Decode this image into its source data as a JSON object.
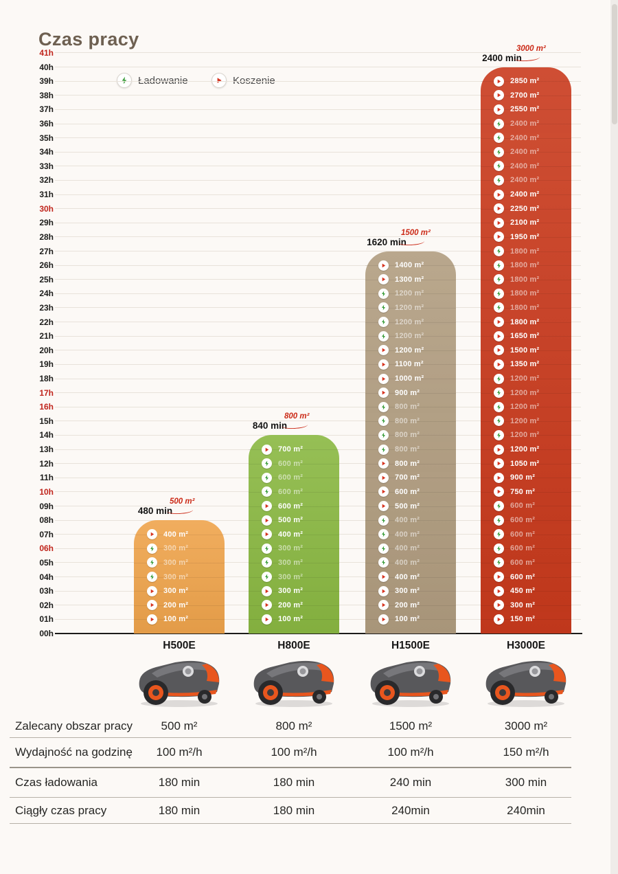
{
  "page": {
    "title": "Czas pracy"
  },
  "legend": {
    "charging_label": "Ładowanie",
    "mowing_label": "Koszenie"
  },
  "colors": {
    "title": "#6e6051",
    "tick": "#1c1c1a",
    "tick_red": "#c0251c",
    "callout_red": "#cb2a17",
    "mow_glyph": "#d6331f",
    "charge_glyph": "#3f9f3f",
    "gridline": "#e8e2da",
    "mower_body": "#58585b",
    "mower_accent": "#e8561e"
  },
  "axis": {
    "unit": "h",
    "min": 0,
    "max": 41,
    "red_ticks": [
      6,
      10,
      16,
      17,
      30,
      41
    ]
  },
  "chart_data": {
    "type": "bar",
    "title": "Czas pracy",
    "ylabel": "hours (00h–41h)",
    "ylim": [
      0,
      41
    ],
    "grid": true,
    "legend_position": "top-left",
    "categories": [
      "H500E",
      "H800E",
      "H1500E",
      "H3000E"
    ],
    "series": [
      {
        "name": "H500E",
        "color": "#efa44c",
        "total_minutes_label": "480 min",
        "area_callout": "500 m²",
        "top_hours": 8,
        "segments": [
          [
            "mow",
            "100 m²"
          ],
          [
            "mow",
            "200 m²"
          ],
          [
            "mow",
            "300 m²"
          ],
          [
            "charge",
            "300 m²"
          ],
          [
            "charge",
            "300 m²"
          ],
          [
            "charge",
            "300 m²"
          ],
          [
            "mow",
            "400 m²"
          ]
        ]
      },
      {
        "name": "H800E",
        "color": "#8ab842",
        "total_minutes_label": "840 min",
        "area_callout": "800 m²",
        "top_hours": 14,
        "segments": [
          [
            "mow",
            "100 m²"
          ],
          [
            "mow",
            "200 m²"
          ],
          [
            "mow",
            "300 m²"
          ],
          [
            "charge",
            "300 m²"
          ],
          [
            "charge",
            "300 m²"
          ],
          [
            "charge",
            "300 m²"
          ],
          [
            "mow",
            "400 m²"
          ],
          [
            "mow",
            "500 m²"
          ],
          [
            "mow",
            "600 m²"
          ],
          [
            "charge",
            "600 m²"
          ],
          [
            "charge",
            "600 m²"
          ],
          [
            "charge",
            "600 m²"
          ],
          [
            "mow",
            "700 m²"
          ]
        ]
      },
      {
        "name": "H1500E",
        "color": "#b19d80",
        "total_minutes_label": "1620 min",
        "area_callout": "1500 m²",
        "top_hours": 27,
        "segments": [
          [
            "mow",
            "100 m²"
          ],
          [
            "mow",
            "200 m²"
          ],
          [
            "mow",
            "300 m²"
          ],
          [
            "mow",
            "400 m²"
          ],
          [
            "charge",
            "400 m²"
          ],
          [
            "charge",
            "400 m²"
          ],
          [
            "charge",
            "400 m²"
          ],
          [
            "charge",
            "400 m²"
          ],
          [
            "mow",
            "500 m²"
          ],
          [
            "mow",
            "600 m²"
          ],
          [
            "mow",
            "700 m²"
          ],
          [
            "mow",
            "800 m²"
          ],
          [
            "charge",
            "800 m²"
          ],
          [
            "charge",
            "800 m²"
          ],
          [
            "charge",
            "800 m²"
          ],
          [
            "charge",
            "800 m²"
          ],
          [
            "mow",
            "900 m²"
          ],
          [
            "mow",
            "1000 m²"
          ],
          [
            "mow",
            "1100 m²"
          ],
          [
            "mow",
            "1200 m²"
          ],
          [
            "charge",
            "1200 m²"
          ],
          [
            "charge",
            "1200 m²"
          ],
          [
            "charge",
            "1200 m²"
          ],
          [
            "charge",
            "1200 m²"
          ],
          [
            "mow",
            "1300 m²"
          ],
          [
            "mow",
            "1400 m²"
          ]
        ]
      },
      {
        "name": "H3000E",
        "color": "#c93a1d",
        "total_minutes_label": "2400 min",
        "area_callout": "3000 m²",
        "top_hours": 40,
        "segments": [
          [
            "mow",
            "150 m²"
          ],
          [
            "mow",
            "300 m²"
          ],
          [
            "mow",
            "450 m²"
          ],
          [
            "mow",
            "600 m²"
          ],
          [
            "charge",
            "600 m²"
          ],
          [
            "charge",
            "600 m²"
          ],
          [
            "charge",
            "600 m²"
          ],
          [
            "charge",
            "600 m²"
          ],
          [
            "charge",
            "600 m²"
          ],
          [
            "mow",
            "750 m²"
          ],
          [
            "mow",
            "900 m²"
          ],
          [
            "mow",
            "1050 m²"
          ],
          [
            "mow",
            "1200 m²"
          ],
          [
            "charge",
            "1200 m²"
          ],
          [
            "charge",
            "1200 m²"
          ],
          [
            "charge",
            "1200 m²"
          ],
          [
            "charge",
            "1200 m²"
          ],
          [
            "charge",
            "1200 m²"
          ],
          [
            "mow",
            "1350 m²"
          ],
          [
            "mow",
            "1500 m²"
          ],
          [
            "mow",
            "1650 m²"
          ],
          [
            "mow",
            "1800 m²"
          ],
          [
            "charge",
            "1800 m²"
          ],
          [
            "charge",
            "1800 m²"
          ],
          [
            "charge",
            "1800 m²"
          ],
          [
            "charge",
            "1800 m²"
          ],
          [
            "charge",
            "1800 m²"
          ],
          [
            "mow",
            "1950 m²"
          ],
          [
            "mow",
            "2100 m²"
          ],
          [
            "mow",
            "2250 m²"
          ],
          [
            "mow",
            "2400 m²"
          ],
          [
            "charge",
            "2400 m²"
          ],
          [
            "charge",
            "2400 m²"
          ],
          [
            "charge",
            "2400 m²"
          ],
          [
            "charge",
            "2400 m²"
          ],
          [
            "charge",
            "2400 m²"
          ],
          [
            "mow",
            "2550 m²"
          ],
          [
            "mow",
            "2700 m²"
          ],
          [
            "mow",
            "2850 m²"
          ]
        ]
      }
    ]
  },
  "table": {
    "rows": [
      {
        "label": "Zalecany obszar pracy",
        "values": [
          "500 m²",
          "800 m²",
          "1500 m²",
          "3000 m²"
        ]
      },
      {
        "label": "Wydajność na godzinę",
        "values": [
          "100 m²/h",
          "100 m²/h",
          "100 m²/h",
          "150 m²/h"
        ]
      },
      {
        "label": "Czas ładowania",
        "values": [
          "180 min",
          "180 min",
          "240 min",
          "300 min"
        ]
      },
      {
        "label": "Ciągły czas pracy",
        "values": [
          "180 min",
          "180 min",
          "240min",
          "240min"
        ]
      }
    ]
  }
}
